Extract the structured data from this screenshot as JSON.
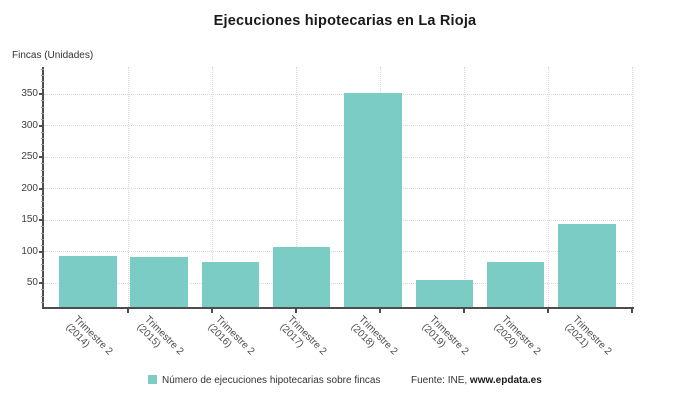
{
  "title": "Ejecuciones hipotecarias en La Rioja",
  "chart_data": {
    "type": "bar",
    "title": "Ejecuciones hipotecarias en La Rioja",
    "xlabel": "",
    "ylabel": "Fincas (Unidades)",
    "categories": [
      "Trimestre 2 (2014)",
      "Trimestre 2 (2015)",
      "Trimestre 2 (2016)",
      "Trimestre 2 (2017)",
      "Trimestre 2 (2018)",
      "Trimestre 2 (2019)",
      "Trimestre 2 (2020)",
      "Trimestre 2 (2021)"
    ],
    "category_lines": [
      [
        "Trimestre 2",
        "(2014)"
      ],
      [
        "Trimestre 2",
        "(2015)"
      ],
      [
        "Trimestre 2",
        "(2016)"
      ],
      [
        "Trimestre 2",
        "(2017)"
      ],
      [
        "Trimestre 2",
        "(2018)"
      ],
      [
        "Trimestre 2",
        "(2019)"
      ],
      [
        "Trimestre 2",
        "(2020)"
      ],
      [
        "Trimestre 2",
        "(2021)"
      ]
    ],
    "values": [
      93,
      92,
      84,
      108,
      351,
      55,
      84,
      144
    ],
    "series": [
      {
        "name": "Número de ejecuciones hipotecarias sobre fincas",
        "values": [
          93,
          92,
          84,
          108,
          351,
          55,
          84,
          144
        ]
      }
    ],
    "yticks": [
      50,
      100,
      150,
      200,
      250,
      300,
      350
    ],
    "ylim": [
      12,
      393
    ],
    "grid": "dotted",
    "legend": {
      "position": "bottom",
      "label": "Número de ejecuciones hipotecarias sobre fincas"
    },
    "source": {
      "prefix": "Fuente: INE, ",
      "link": "www.epdata.es"
    },
    "colors": {
      "bar": "#7accc4",
      "axis": "#4d4d4d",
      "grid": "#d9d9d9",
      "title": "#1a1a1a",
      "text": "#404040"
    }
  }
}
